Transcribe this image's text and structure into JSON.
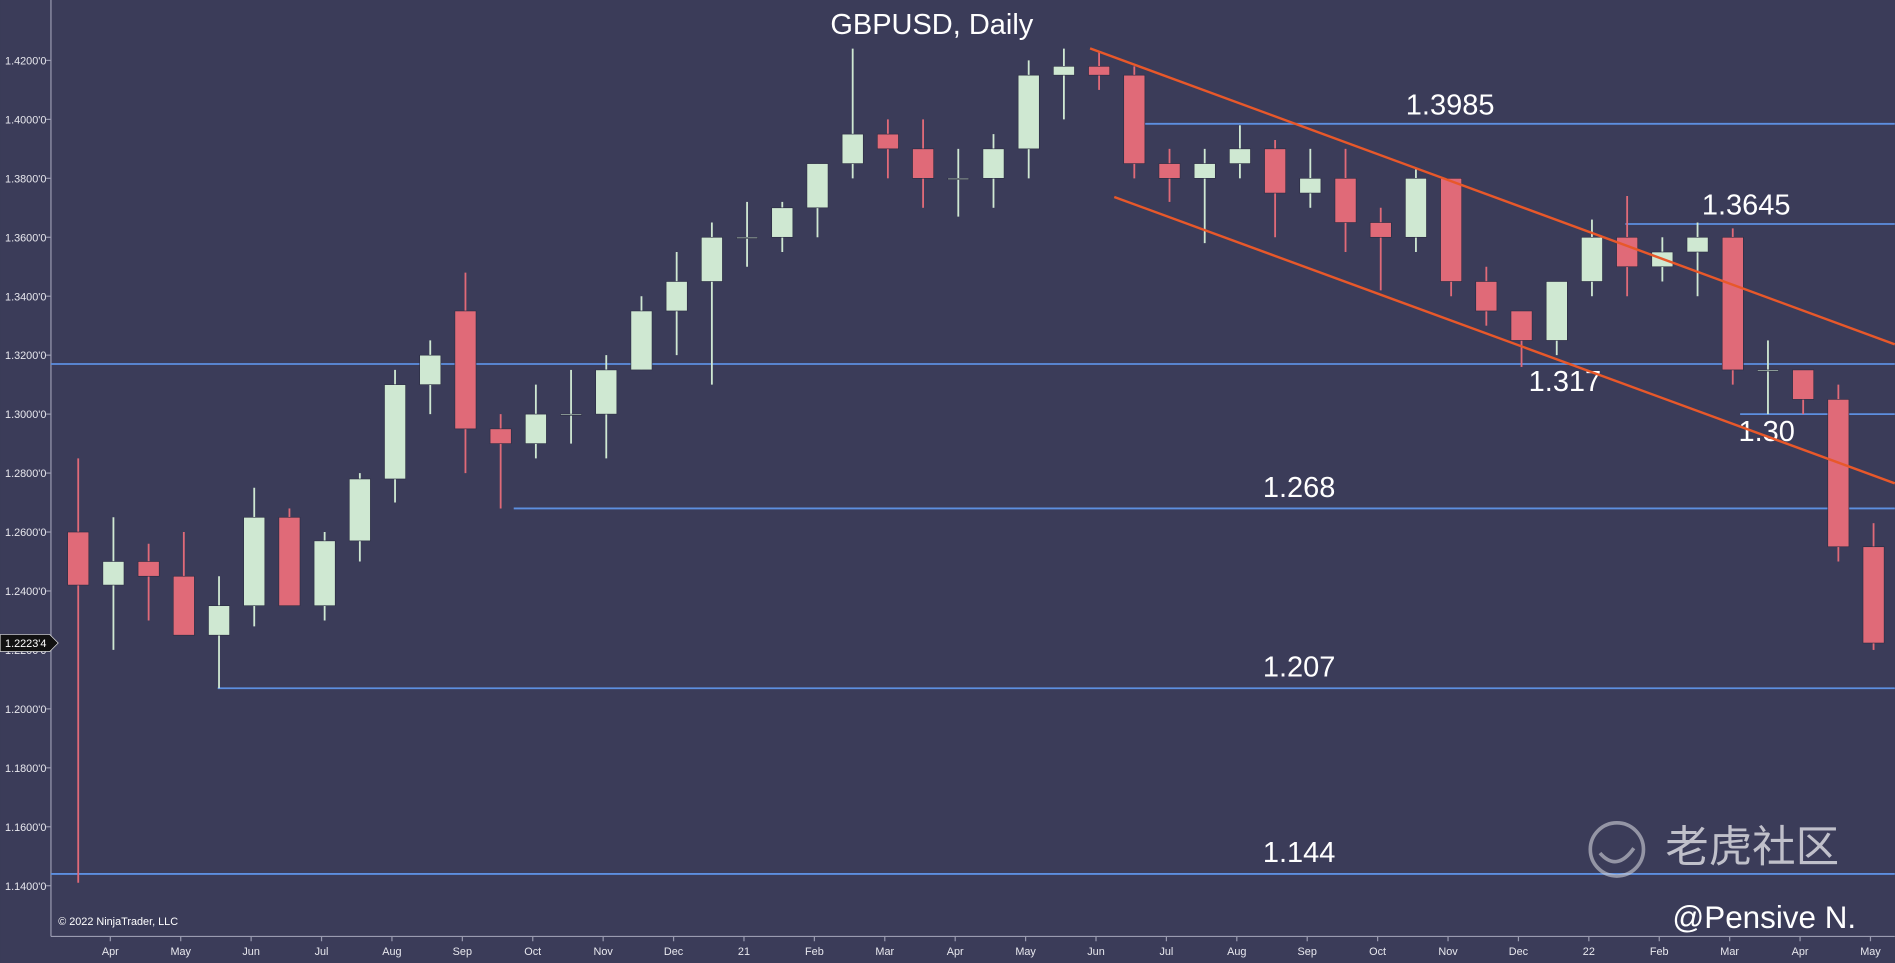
{
  "chart_data": {
    "type": "candlestick",
    "title": "GBPUSD, Daily",
    "copyright": "© 2022 NinjaTrader, LLC",
    "watermark": "老虎社区",
    "author": "@Pensive N.",
    "categories": [
      null,
      "Apr",
      null,
      "May",
      null,
      "Jun",
      null,
      "Jul",
      null,
      "Aug",
      null,
      "Sep",
      null,
      "Oct",
      null,
      "Nov",
      null,
      "Dec",
      null,
      "21",
      null,
      "Feb",
      null,
      "Mar",
      null,
      "Apr",
      null,
      "May",
      null,
      "Jun",
      null,
      "Jul",
      null,
      "Aug",
      null,
      "Sep",
      null,
      "Oct",
      null,
      "Nov",
      null,
      "Dec",
      null,
      "22",
      null,
      "Feb",
      null,
      "Mar",
      null,
      "Apr",
      null,
      "May"
    ],
    "open": [
      1.26,
      1.242,
      1.25,
      1.245,
      1.225,
      1.235,
      1.265,
      1.235,
      1.257,
      1.278,
      1.31,
      1.335,
      1.295,
      1.29,
      1.3,
      1.3,
      1.315,
      1.335,
      1.345,
      1.36,
      1.36,
      1.37,
      1.385,
      1.395,
      1.39,
      1.38,
      1.38,
      1.39,
      1.415,
      1.418,
      1.415,
      1.385,
      1.38,
      1.385,
      1.39,
      1.375,
      1.38,
      1.365,
      1.36,
      1.38,
      1.345,
      1.335,
      1.325,
      1.345,
      1.36,
      1.35,
      1.355,
      1.36,
      1.315,
      1.315,
      1.305,
      1.255
    ],
    "high": [
      1.285,
      1.265,
      1.256,
      1.26,
      1.245,
      1.275,
      1.268,
      1.26,
      1.28,
      1.315,
      1.325,
      1.348,
      1.3,
      1.31,
      1.315,
      1.32,
      1.34,
      1.355,
      1.365,
      1.372,
      1.372,
      1.385,
      1.424,
      1.4,
      1.4,
      1.39,
      1.395,
      1.42,
      1.424,
      1.423,
      1.418,
      1.39,
      1.39,
      1.398,
      1.393,
      1.39,
      1.39,
      1.37,
      1.383,
      1.38,
      1.35,
      1.335,
      1.345,
      1.366,
      1.374,
      1.36,
      1.365,
      1.363,
      1.325,
      1.315,
      1.31,
      1.263
    ],
    "low": [
      1.141,
      1.22,
      1.23,
      1.225,
      1.207,
      1.228,
      1.235,
      1.23,
      1.25,
      1.27,
      1.3,
      1.28,
      1.268,
      1.285,
      1.29,
      1.285,
      1.315,
      1.32,
      1.31,
      1.35,
      1.355,
      1.36,
      1.38,
      1.38,
      1.37,
      1.367,
      1.37,
      1.38,
      1.4,
      1.41,
      1.38,
      1.372,
      1.358,
      1.38,
      1.36,
      1.37,
      1.355,
      1.342,
      1.355,
      1.34,
      1.33,
      1.316,
      1.32,
      1.34,
      1.34,
      1.345,
      1.34,
      1.31,
      1.3,
      1.3,
      1.25,
      1.22
    ],
    "close": [
      1.242,
      1.25,
      1.245,
      1.225,
      1.235,
      1.265,
      1.235,
      1.257,
      1.278,
      1.31,
      1.32,
      1.295,
      1.29,
      1.3,
      1.3,
      1.315,
      1.335,
      1.345,
      1.36,
      1.36,
      1.37,
      1.385,
      1.395,
      1.39,
      1.38,
      1.38,
      1.39,
      1.415,
      1.418,
      1.415,
      1.385,
      1.38,
      1.385,
      1.39,
      1.375,
      1.38,
      1.365,
      1.36,
      1.38,
      1.345,
      1.335,
      1.325,
      1.345,
      1.36,
      1.35,
      1.355,
      1.36,
      1.315,
      1.315,
      1.305,
      1.255,
      1.22234
    ],
    "up_color": "#cfe8d2",
    "down_color": "#e06a78",
    "ylim": [
      1.1228,
      1.4405
    ],
    "yticks": [
      {
        "value": 1.14,
        "label": "1.1400'0"
      },
      {
        "value": 1.16,
        "label": "1.1600'0"
      },
      {
        "value": 1.18,
        "label": "1.1800'0"
      },
      {
        "value": 1.2,
        "label": "1.2000'0"
      },
      {
        "value": 1.22,
        "label": "1.2200'0"
      },
      {
        "value": 1.24,
        "label": "1.2400'0"
      },
      {
        "value": 1.26,
        "label": "1.2600'0"
      },
      {
        "value": 1.28,
        "label": "1.2800'0"
      },
      {
        "value": 1.3,
        "label": "1.3000'0"
      },
      {
        "value": 1.32,
        "label": "1.3200'0"
      },
      {
        "value": 1.34,
        "label": "1.3400'0"
      },
      {
        "value": 1.36,
        "label": "1.3600'0"
      },
      {
        "value": 1.38,
        "label": "1.3800'0"
      },
      {
        "value": 1.4,
        "label": "1.4000'0"
      },
      {
        "value": 1.42,
        "label": "1.4200'0"
      }
    ],
    "last_price": {
      "value": 1.22234,
      "label": "1.2223'4"
    },
    "level_color": "#5d8fe0",
    "levels": [
      1.3985,
      1.3645,
      1.317,
      {
        "value": 1.3,
        "label": "1.30"
      },
      1.268,
      1.207,
      1.144
    ]
  }
}
